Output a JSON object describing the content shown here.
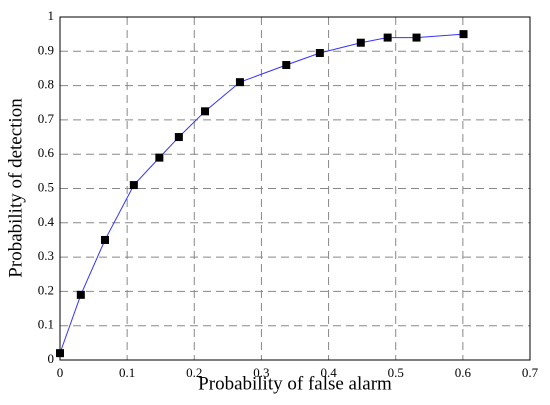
{
  "chart_data": {
    "type": "line",
    "xlabel": "Probability of false alarm",
    "ylabel": "Probability of detection",
    "x": [
      0,
      0.031,
      0.067,
      0.11,
      0.148,
      0.177,
      0.216,
      0.268,
      0.337,
      0.387,
      0.448,
      0.488,
      0.531,
      0.601
    ],
    "values": [
      0.02,
      0.19,
      0.35,
      0.51,
      0.59,
      0.65,
      0.725,
      0.81,
      0.86,
      0.895,
      0.925,
      0.94,
      0.94,
      0.95
    ],
    "color": "#3333ff",
    "marker_color": "#000000",
    "xlim": [
      0,
      0.7
    ],
    "xticks": [
      0,
      0.1,
      0.2,
      0.3,
      0.4,
      0.5,
      0.6,
      0.7
    ],
    "ylim": [
      0,
      1
    ],
    "yticks": [
      0,
      0.1,
      0.2,
      0.3,
      0.4,
      0.5,
      0.6,
      0.7,
      0.8,
      0.9,
      1
    ],
    "grid": true
  }
}
